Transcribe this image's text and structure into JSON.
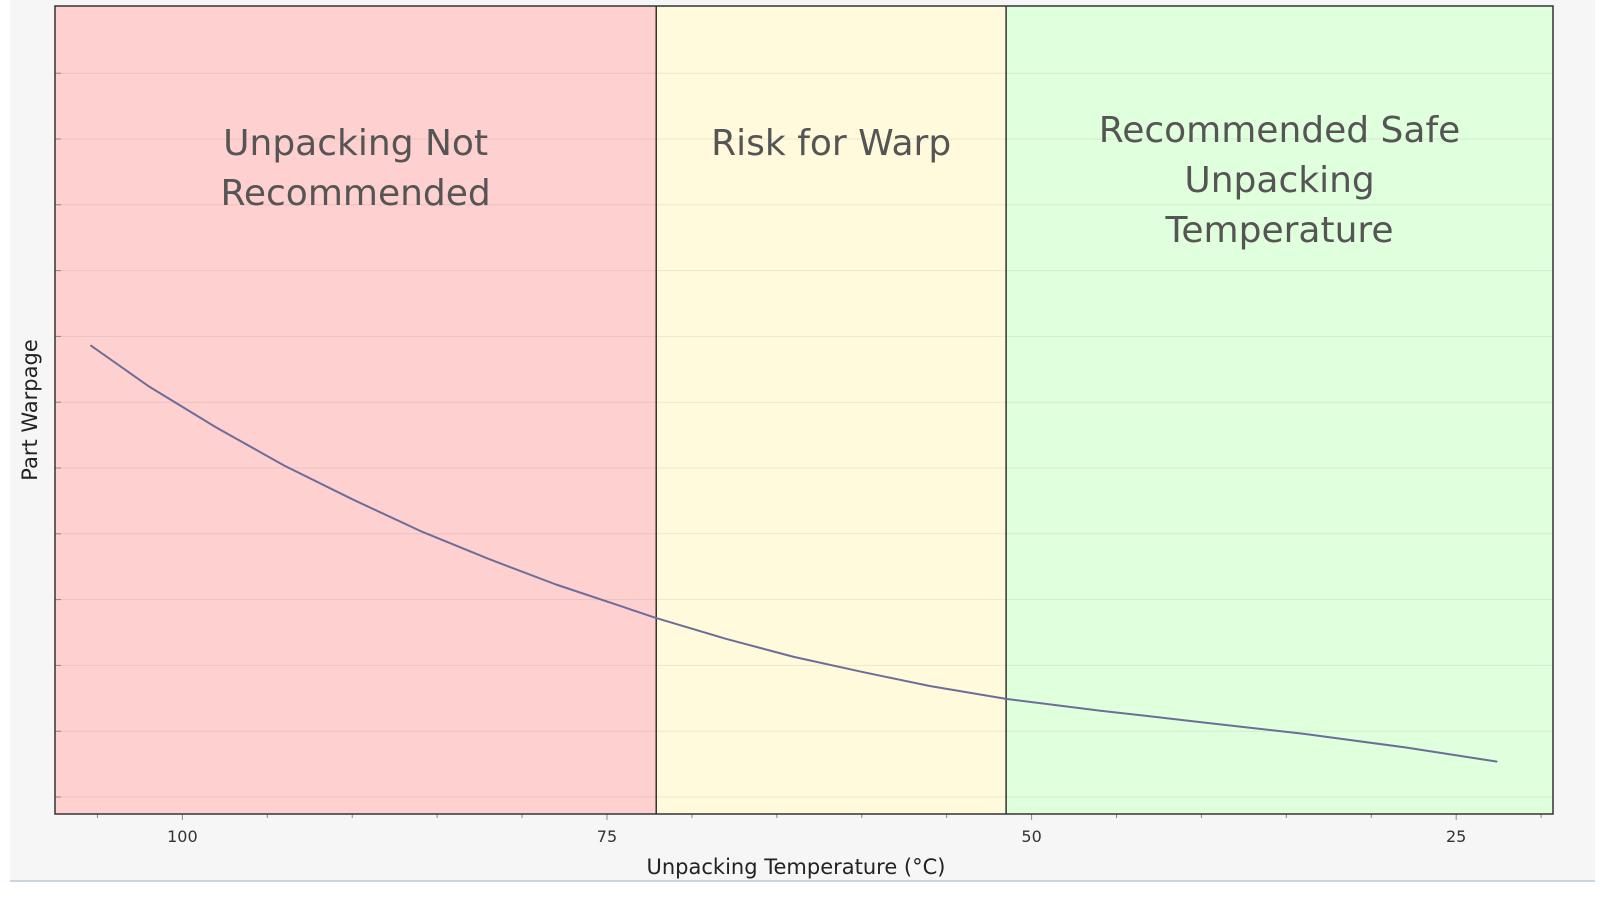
{
  "chart_data": {
    "type": "line",
    "title": "",
    "xlabel": "Unpacking Temperature (°C)",
    "ylabel": "Part Warpage",
    "x_reversed": true,
    "xlim": [
      107.5,
      19.3
    ],
    "ylim": [
      0,
      12.5
    ],
    "x_ticks": [
      100,
      75,
      50,
      25
    ],
    "x_tick_labels": [
      "100",
      "75",
      "50",
      "25"
    ],
    "y_tick_labels_shown": false,
    "grid": true,
    "regions": [
      {
        "label": "Unpacking Not Recommended",
        "lines": [
          "Unpacking Not",
          "Recommended"
        ],
        "x_from": 107.5,
        "x_to": 72.1,
        "color": "#ffd0d0"
      },
      {
        "label": "Risk for Warp",
        "lines": [
          "Risk for Warp"
        ],
        "x_from": 72.1,
        "x_to": 51.5,
        "color": "#fffadb"
      },
      {
        "label": "Recommended Safe Unpacking Temperature",
        "lines": [
          "Recommended Safe",
          "Unpacking",
          "Temperature"
        ],
        "x_from": 51.5,
        "x_to": 19.3,
        "color": "#e0ffdc"
      }
    ],
    "series": [
      {
        "color": "#6b6e98",
        "x": [
          105.4,
          102,
          98,
          94,
          90,
          86,
          82,
          78,
          74,
          72.1,
          68,
          64,
          60,
          56,
          51.5,
          46,
          40,
          34,
          28,
          22.6
        ],
        "y": [
          7.25,
          6.62,
          5.98,
          5.39,
          4.87,
          4.38,
          3.95,
          3.55,
          3.2,
          3.03,
          2.71,
          2.43,
          2.2,
          1.98,
          1.78,
          1.6,
          1.42,
          1.24,
          1.03,
          0.81
        ]
      }
    ]
  }
}
